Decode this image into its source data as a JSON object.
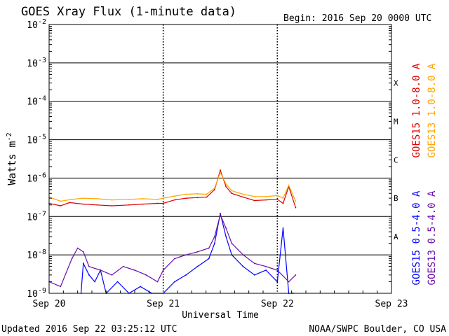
{
  "chart_data": {
    "type": "line",
    "title": "GOES Xray Flux (1-minute data)",
    "begin_label": "Begin:  2016 Sep 20 0000 UTC",
    "xlabel": "Universal Time",
    "ylabel": "Watts m",
    "ylabel_superscript": "-2",
    "y_scale": "log",
    "ylim": [
      1e-09,
      0.01
    ],
    "x_range_days": [
      0,
      3
    ],
    "x_ticks": [
      {
        "label": "Sep 20",
        "day": 0
      },
      {
        "label": "Sep 21",
        "day": 1
      },
      {
        "label": "Sep 22",
        "day": 2
      },
      {
        "label": "Sep 23",
        "day": 3
      }
    ],
    "y_ticks": [
      {
        "base": "10",
        "exp": "-2",
        "value": 0.01
      },
      {
        "base": "10",
        "exp": "-3",
        "value": 0.001
      },
      {
        "base": "10",
        "exp": "-4",
        "value": 0.0001
      },
      {
        "base": "10",
        "exp": "-5",
        "value": 1e-05
      },
      {
        "base": "10",
        "exp": "-6",
        "value": 1e-06
      },
      {
        "base": "10",
        "exp": "-7",
        "value": 1e-07
      },
      {
        "base": "10",
        "exp": "-8",
        "value": 1e-08
      },
      {
        "base": "10",
        "exp": "-9",
        "value": 1e-09
      }
    ],
    "flare_classes": [
      {
        "label": "X",
        "value": 0.0003
      },
      {
        "label": "M",
        "value": 3e-05
      },
      {
        "label": "C",
        "value": 3e-06
      },
      {
        "label": "B",
        "value": 3e-07
      },
      {
        "label": "A",
        "value": 3e-08
      }
    ],
    "series": [
      {
        "name": "GOES15 1.0-8.0 A",
        "color": "#dd0000",
        "x": [
          0,
          0.1,
          0.18,
          0.3,
          0.42,
          0.55,
          0.7,
          0.82,
          0.95,
          1.0,
          1.1,
          1.2,
          1.3,
          1.38,
          1.45,
          1.5,
          1.55,
          1.6,
          1.7,
          1.8,
          1.9,
          2.0,
          2.05,
          2.1,
          2.16
        ],
        "y": [
          2.2e-07,
          1.9e-07,
          2.3e-07,
          2.1e-07,
          2e-07,
          1.9e-07,
          2e-07,
          2.1e-07,
          2.2e-07,
          2.2e-07,
          2.7e-07,
          3e-07,
          3.1e-07,
          3.2e-07,
          5e-07,
          1.6e-06,
          6e-07,
          4e-07,
          3.2e-07,
          2.6e-07,
          2.7e-07,
          2.8e-07,
          2.2e-07,
          6e-07,
          1.7e-07
        ]
      },
      {
        "name": "GOES13 1.0-8.0 A",
        "color": "#ffa500",
        "x": [
          0,
          0.1,
          0.2,
          0.3,
          0.42,
          0.55,
          0.7,
          0.82,
          0.95,
          1.0,
          1.1,
          1.2,
          1.3,
          1.38,
          1.45,
          1.5,
          1.55,
          1.6,
          1.7,
          1.8,
          1.9,
          2.0,
          2.05,
          2.1,
          2.16
        ],
        "y": [
          3.2e-07,
          2.5e-07,
          2.8e-07,
          3e-07,
          2.9e-07,
          2.7e-07,
          2.8e-07,
          2.9e-07,
          2.8e-07,
          3e-07,
          3.4e-07,
          3.8e-07,
          3.9e-07,
          3.8e-07,
          5.5e-07,
          1.4e-06,
          7e-07,
          4.7e-07,
          3.8e-07,
          3.3e-07,
          3.3e-07,
          3.5e-07,
          3e-07,
          6.5e-07,
          2.5e-07
        ]
      },
      {
        "name": "GOES15 0.5-4.0 A",
        "color": "#0000ff",
        "x": [
          0.28,
          0.3,
          0.35,
          0.4,
          0.45,
          0.5,
          0.6,
          0.7,
          0.8,
          0.9,
          1.0,
          1.1,
          1.2,
          1.3,
          1.4,
          1.45,
          1.5,
          1.55,
          1.6,
          1.7,
          1.8,
          1.9,
          2.0,
          2.05,
          2.1,
          2.14
        ],
        "y": [
          1e-09,
          6e-09,
          3e-09,
          2e-09,
          4e-09,
          1e-09,
          2e-09,
          1e-09,
          1.5e-09,
          1e-09,
          1e-09,
          2e-09,
          3e-09,
          5e-09,
          8e-09,
          2e-08,
          1.2e-07,
          3e-08,
          1e-08,
          5e-09,
          3e-09,
          4e-09,
          2e-09,
          5e-08,
          1e-09,
          1e-09
        ]
      },
      {
        "name": "GOES13 0.5-4.0 A",
        "color": "#6a0dad",
        "x": [
          0,
          0.1,
          0.2,
          0.25,
          0.3,
          0.35,
          0.45,
          0.55,
          0.65,
          0.75,
          0.85,
          0.95,
          1.0,
          1.1,
          1.2,
          1.3,
          1.4,
          1.45,
          1.5,
          1.55,
          1.6,
          1.7,
          1.8,
          1.9,
          2.0,
          2.1,
          2.16
        ],
        "y": [
          2e-09,
          1.5e-09,
          8e-09,
          1.5e-08,
          1.2e-08,
          5e-09,
          4e-09,
          3e-09,
          5e-09,
          4e-09,
          3e-09,
          2e-09,
          4e-09,
          8e-09,
          1e-08,
          1.2e-08,
          1.5e-08,
          3e-08,
          1.1e-07,
          5e-08,
          2e-08,
          1e-08,
          6e-09,
          5e-09,
          4e-09,
          2e-09,
          3e-09
        ]
      }
    ]
  },
  "footer": {
    "updated": "Updated 2016 Sep 22 03:25:12 UTC",
    "credit": "NOAA/SWPC Boulder, CO USA"
  }
}
